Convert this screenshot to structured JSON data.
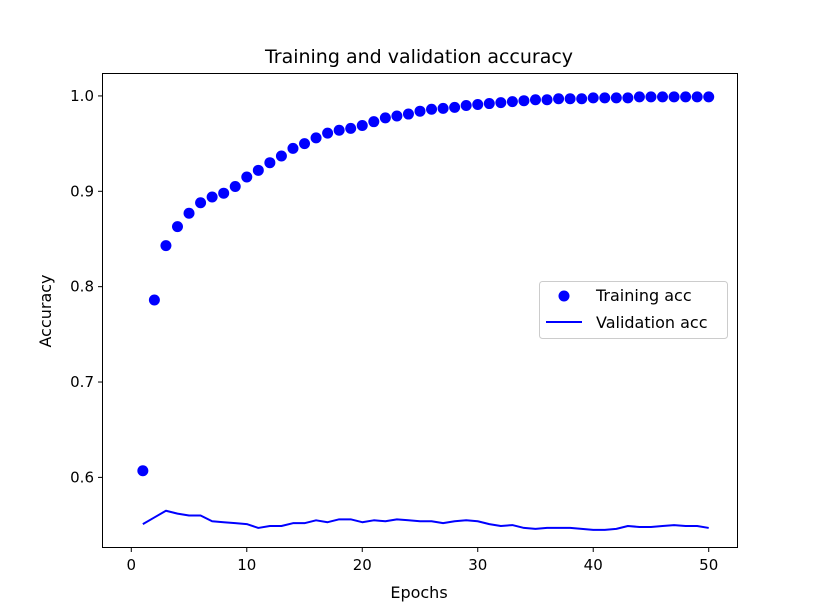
{
  "chart_data": {
    "type": "scatter+line",
    "title": "Training and validation accuracy",
    "xlabel": "Epochs",
    "ylabel": "Accuracy",
    "xlim": [
      -2.45,
      52.45
    ],
    "ylim": [
      0.527,
      1.023
    ],
    "xticks": [
      0,
      10,
      20,
      30,
      40,
      50
    ],
    "yticks": [
      0.6,
      0.7,
      0.8,
      0.9,
      1.0
    ],
    "ytick_labels": [
      "0.6",
      "0.7",
      "0.8",
      "0.9",
      "1.0"
    ],
    "grid": false,
    "legend_position": "center-right",
    "colors": {
      "series": "#0000ff",
      "axes": "#000000",
      "background": "#ffffff"
    },
    "x": [
      1,
      2,
      3,
      4,
      5,
      6,
      7,
      8,
      9,
      10,
      11,
      12,
      13,
      14,
      15,
      16,
      17,
      18,
      19,
      20,
      21,
      22,
      23,
      24,
      25,
      26,
      27,
      28,
      29,
      30,
      31,
      32,
      33,
      34,
      35,
      36,
      37,
      38,
      39,
      40,
      41,
      42,
      43,
      44,
      45,
      46,
      47,
      48,
      49,
      50
    ],
    "series": [
      {
        "name": "Training acc",
        "style": "markers",
        "values": [
          0.607,
          0.786,
          0.843,
          0.863,
          0.877,
          0.888,
          0.894,
          0.898,
          0.905,
          0.915,
          0.922,
          0.93,
          0.937,
          0.945,
          0.95,
          0.956,
          0.961,
          0.964,
          0.966,
          0.969,
          0.973,
          0.977,
          0.979,
          0.981,
          0.984,
          0.986,
          0.987,
          0.988,
          0.99,
          0.991,
          0.992,
          0.993,
          0.994,
          0.995,
          0.996,
          0.996,
          0.997,
          0.997,
          0.997,
          0.998,
          0.998,
          0.998,
          0.998,
          0.999,
          0.999,
          0.999,
          0.999,
          0.999,
          0.999,
          0.999
        ]
      },
      {
        "name": "Validation acc",
        "style": "line",
        "values": [
          0.551,
          0.558,
          0.565,
          0.562,
          0.56,
          0.56,
          0.554,
          0.553,
          0.552,
          0.551,
          0.547,
          0.549,
          0.549,
          0.552,
          0.552,
          0.555,
          0.553,
          0.556,
          0.556,
          0.553,
          0.555,
          0.554,
          0.556,
          0.555,
          0.554,
          0.554,
          0.552,
          0.554,
          0.555,
          0.554,
          0.551,
          0.549,
          0.55,
          0.547,
          0.546,
          0.547,
          0.547,
          0.547,
          0.546,
          0.545,
          0.545,
          0.546,
          0.549,
          0.548,
          0.548,
          0.549,
          0.55,
          0.549,
          0.549,
          0.547
        ]
      }
    ]
  }
}
